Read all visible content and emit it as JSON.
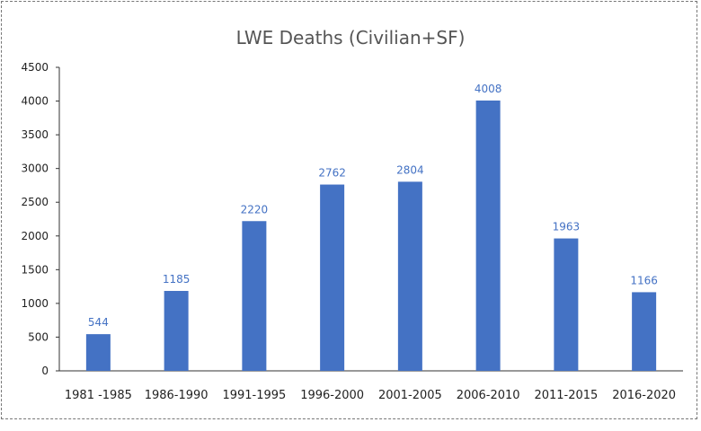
{
  "chart_data": {
    "type": "bar",
    "title": "LWE Deaths (Civilian+SF)",
    "categories": [
      "1981 -1985",
      "1986-1990",
      "1991-1995",
      "1996-2000",
      "2001-2005",
      "2006-2010",
      "2011-2015",
      "2016-2020"
    ],
    "values": [
      544,
      1185,
      2220,
      2762,
      2804,
      4008,
      1963,
      1166
    ],
    "xlabel": "",
    "ylabel": "",
    "ylim": [
      0,
      4500
    ],
    "yticks": [
      0,
      500,
      1000,
      1500,
      2000,
      2500,
      3000,
      3500,
      4000,
      4500
    ],
    "grid": false,
    "legend": "none",
    "bar_color": "#4472C4",
    "label_color": "#4472C4"
  }
}
